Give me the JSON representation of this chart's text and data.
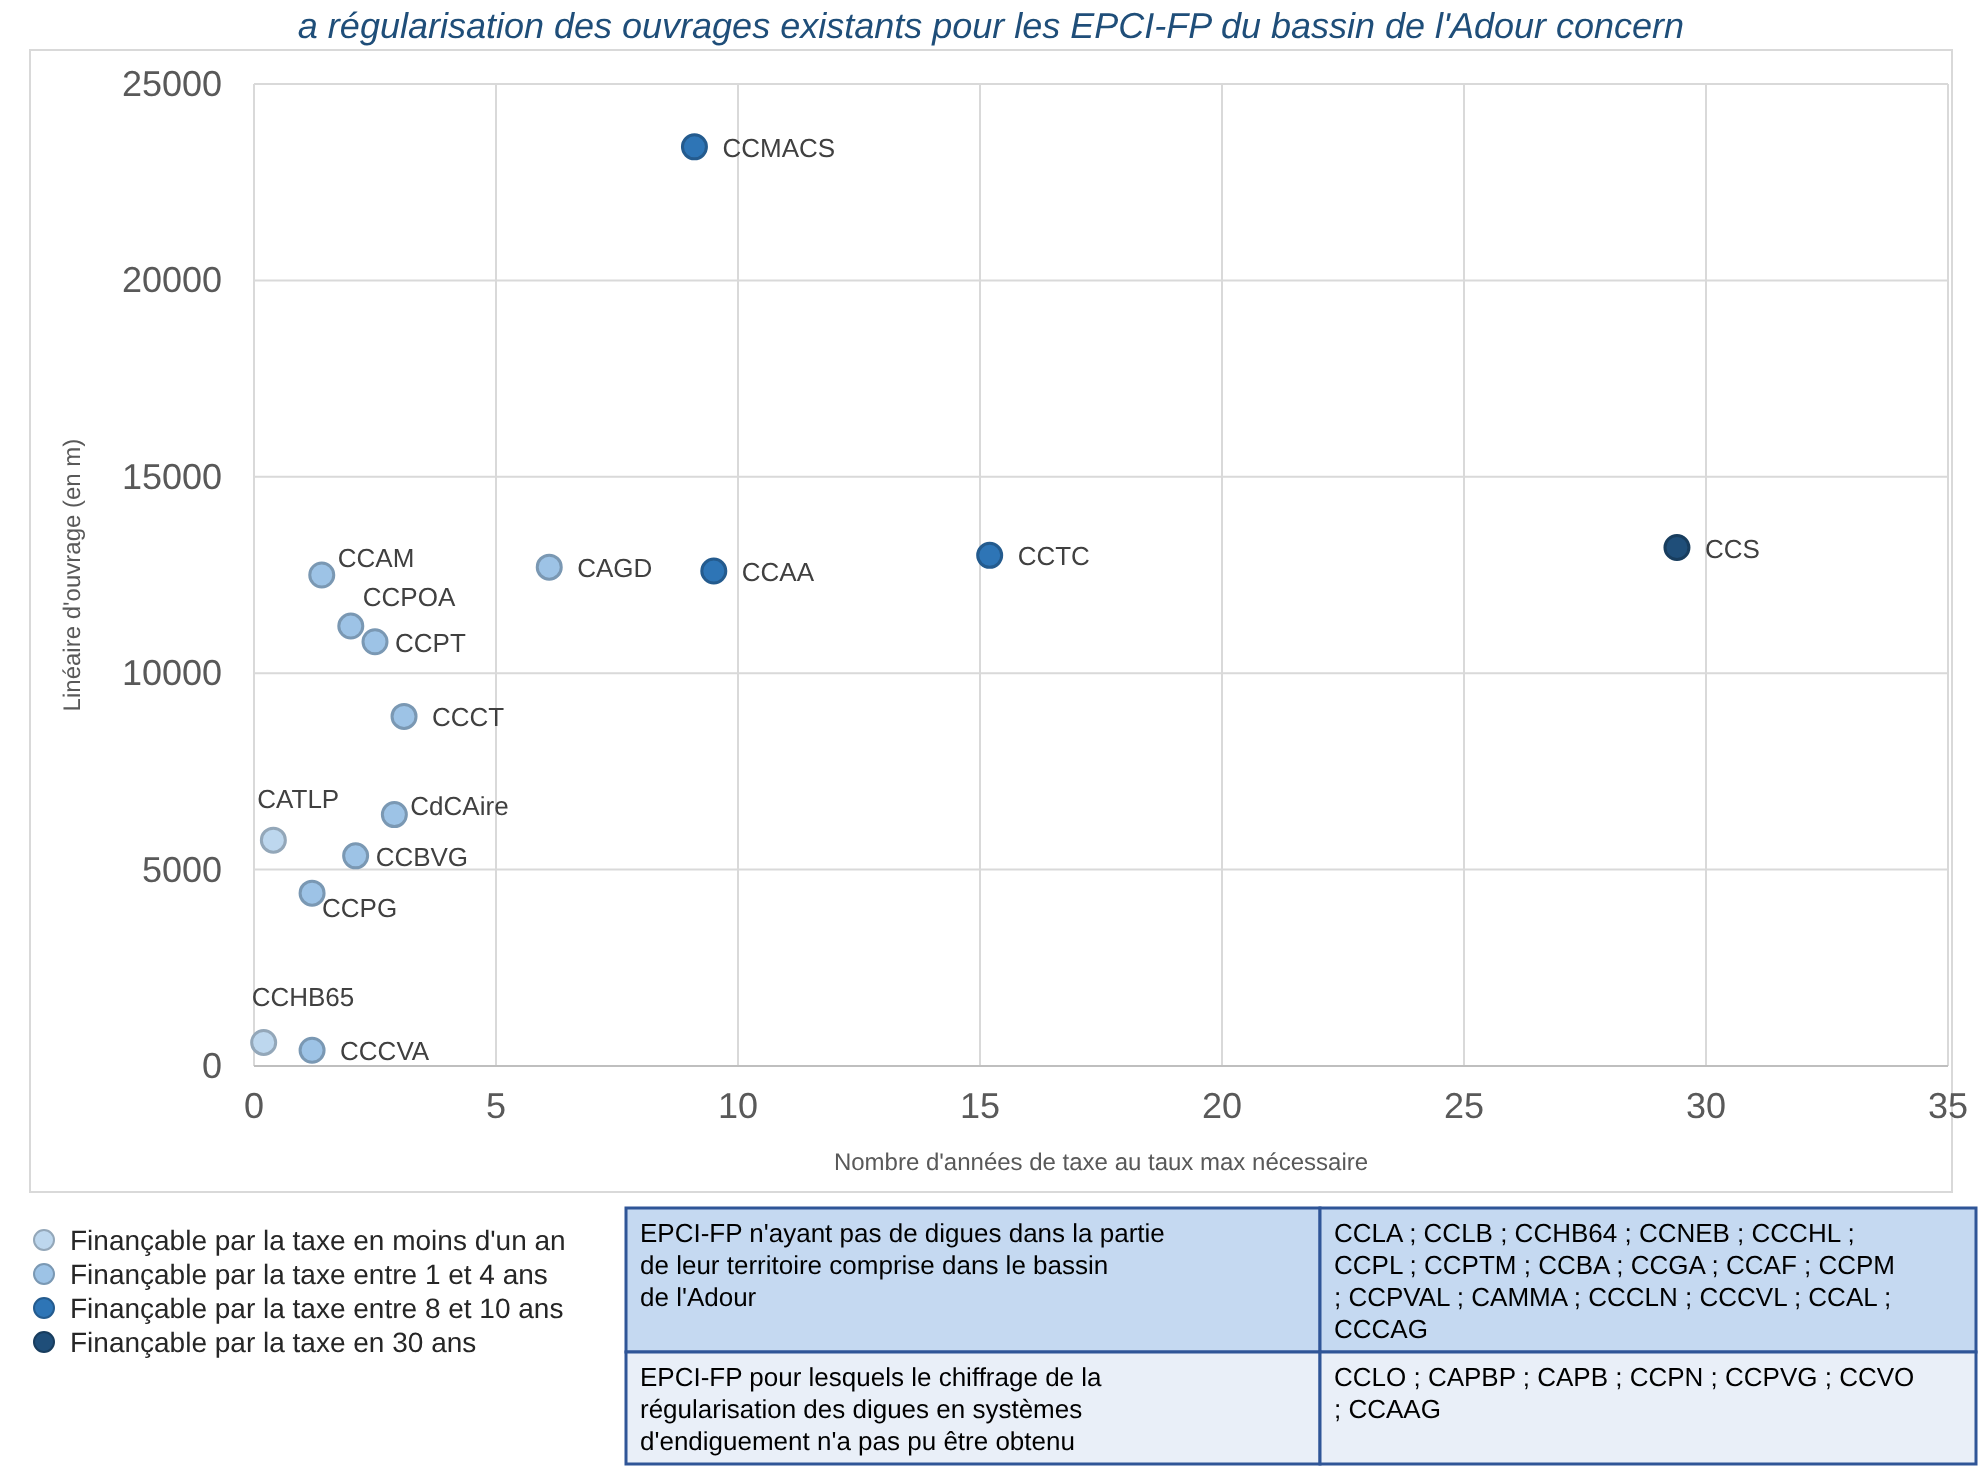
{
  "chart_data": {
    "type": "scatter",
    "title": "a régularisation des ouvrages existants pour les EPCI-FP du bassin de l'Adour concern",
    "xlabel": "Nombre d'années de taxe au taux max nécessaire",
    "ylabel": "Linéaire d'ouvrage (en m)",
    "xlim": [
      0,
      35
    ],
    "ylim": [
      0,
      25000
    ],
    "xticks": [
      0,
      5,
      10,
      15,
      20,
      25,
      30,
      35
    ],
    "yticks": [
      0,
      5000,
      10000,
      15000,
      20000,
      25000
    ],
    "grid": true,
    "marker": "circle",
    "legend": "bottom left",
    "series": [
      {
        "name": "Finançable par la taxe en moins d'un an",
        "color": "#bdd7ee",
        "x": [
          0.4,
          0.2
        ],
        "values": [
          5750,
          600
        ]
      },
      {
        "name": "Finançable par  la taxe entre 1 et 4 ans",
        "color": "#9dc3e6",
        "x": [
          1.4,
          6.1,
          2.0,
          2.5,
          3.1,
          2.9,
          2.1,
          1.2,
          1.2
        ],
        "values": [
          12500,
          12700,
          11200,
          10800,
          8900,
          6400,
          5350,
          4400,
          400
        ]
      },
      {
        "name": "Finançable par la taxe entre 8 et 10 ans",
        "color": "#2e75b6",
        "x": [
          9.1,
          9.5,
          15.2
        ],
        "values": [
          23400,
          12600,
          13000
        ]
      },
      {
        "name": "Finançable par la taxe en 30 ans",
        "color": "#1f4e79",
        "x": [
          29.4
        ],
        "values": [
          13200
        ]
      }
    ],
    "annotations": [
      {
        "text": "CATLP",
        "x": 0.4,
        "y": 5750
      },
      {
        "text": "CCHB65",
        "x": 0.2,
        "y": 600
      },
      {
        "text": "CCAM",
        "x": 1.4,
        "y": 12500
      },
      {
        "text": "CAGD",
        "x": 6.1,
        "y": 12700
      },
      {
        "text": "CCPOA",
        "x": 2.0,
        "y": 11200
      },
      {
        "text": "CCPT",
        "x": 2.5,
        "y": 10800
      },
      {
        "text": "CCCT",
        "x": 3.1,
        "y": 8900
      },
      {
        "text": "CdCAire",
        "x": 2.9,
        "y": 6400
      },
      {
        "text": "CCBVG",
        "x": 2.1,
        "y": 5350
      },
      {
        "text": "CCPG",
        "x": 1.2,
        "y": 4400
      },
      {
        "text": "CCCVA",
        "x": 1.2,
        "y": 400
      },
      {
        "text": "CCMACS",
        "x": 9.1,
        "y": 23400
      },
      {
        "text": "CCAA",
        "x": 9.5,
        "y": 12600
      },
      {
        "text": "CCTC",
        "x": 15.2,
        "y": 13000
      },
      {
        "text": "CCS",
        "x": 29.4,
        "y": 13200
      },
      "EPCI-FP n'ayant pas de digues dans la partie de leur territoire comprise dans le bassin de l'Adour",
      "CCLA ; CCLB ; CCHB64 ; CCNEB ; CCCHL ; CCPL ; CCPTM ; CCBA ; CCGA ; CCAF ; CCPM ; CCPVAL ; CAMMA ; CCCLN ; CCCVL ; CCAL ; CCCAG",
      "EPCI-FP pour lesquels le chiffrage de la régularisation des digues en systèmes d'endiguement n'a pas pu être obtenu",
      "CCLO ; CAPBP ; CAPB ; CCPN ; CCPVG ; CCVO ; CCAAG"
    ]
  }
}
